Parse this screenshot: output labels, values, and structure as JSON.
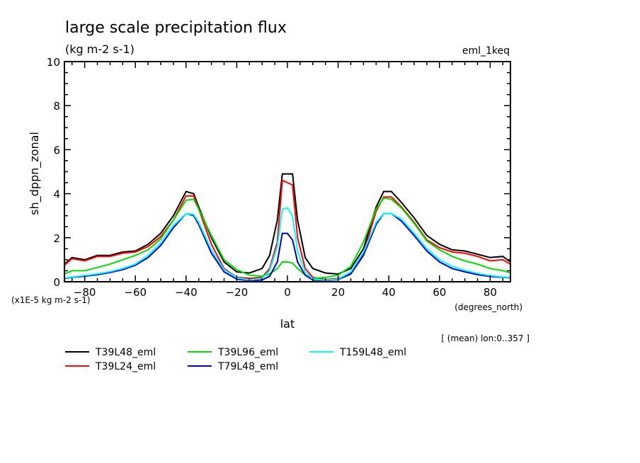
{
  "chart_data": {
    "type": "line",
    "title": "large scale precipitation flux",
    "subtitle": "(kg m-2 s-1)",
    "experiment_label": "eml_1keq",
    "xlabel": "lat",
    "xunits": "(degrees_north)",
    "ylabel": "sh_dppn_zonal",
    "yscale_note": "(x1E-5 kg m-2 s-1)",
    "footnote": "[ (mean) lon:0..357 ]",
    "xlim": [
      -88,
      88
    ],
    "ylim": [
      0,
      10
    ],
    "xticks": [
      -80,
      -60,
      -40,
      -20,
      0,
      20,
      40,
      60,
      80
    ],
    "xtick_labels": [
      "-80",
      "-60",
      "-40",
      "-20",
      "0",
      "20",
      "40",
      "60",
      "80"
    ],
    "yticks": [
      0,
      2,
      4,
      6,
      8,
      10
    ],
    "ytick_labels": [
      "0",
      "2",
      "4",
      "6",
      "8",
      "10"
    ],
    "grid": false,
    "legend_position": "bottom",
    "x": [
      -88,
      -85,
      -80,
      -75,
      -70,
      -65,
      -60,
      -55,
      -50,
      -45,
      -40,
      -37,
      -35,
      -30,
      -25,
      -20,
      -15,
      -10,
      -7,
      -4,
      -2,
      0,
      2,
      4,
      7,
      10,
      15,
      20,
      25,
      30,
      35,
      38,
      41,
      45,
      50,
      55,
      60,
      65,
      70,
      75,
      80,
      85,
      88
    ],
    "series": [
      {
        "name": "T39L48_eml",
        "color": "#000000",
        "values": [
          0.8,
          1.1,
          1.0,
          1.2,
          1.2,
          1.35,
          1.4,
          1.7,
          2.2,
          3.0,
          4.1,
          4.0,
          3.4,
          2.0,
          0.9,
          0.45,
          0.4,
          0.6,
          1.2,
          2.8,
          4.9,
          4.9,
          4.9,
          2.8,
          1.1,
          0.6,
          0.4,
          0.35,
          0.6,
          1.5,
          3.4,
          4.1,
          4.1,
          3.6,
          2.9,
          2.1,
          1.7,
          1.45,
          1.4,
          1.25,
          1.1,
          1.15,
          0.9
        ]
      },
      {
        "name": "T39L24_eml",
        "color": "#ff0000",
        "values": [
          0.75,
          1.05,
          0.95,
          1.15,
          1.15,
          1.3,
          1.35,
          1.6,
          2.05,
          2.8,
          3.9,
          3.9,
          3.3,
          1.7,
          0.6,
          0.2,
          0.15,
          0.2,
          0.6,
          1.8,
          4.6,
          4.5,
          4.4,
          2.0,
          0.6,
          0.2,
          0.1,
          0.15,
          0.4,
          1.3,
          3.2,
          3.85,
          3.85,
          3.4,
          2.7,
          1.9,
          1.55,
          1.35,
          1.3,
          1.15,
          0.95,
          1.0,
          0.8
        ]
      },
      {
        "name": "T39L96_eml",
        "color": "#00dd00",
        "values": [
          0.35,
          0.5,
          0.5,
          0.65,
          0.8,
          1.0,
          1.2,
          1.45,
          1.95,
          2.8,
          3.7,
          3.75,
          3.3,
          2.1,
          1.0,
          0.55,
          0.3,
          0.25,
          0.35,
          0.6,
          0.9,
          0.9,
          0.85,
          0.6,
          0.3,
          0.15,
          0.2,
          0.3,
          0.7,
          1.8,
          3.3,
          3.8,
          3.75,
          3.35,
          2.65,
          1.85,
          1.45,
          1.15,
          0.95,
          0.8,
          0.6,
          0.5,
          0.4
        ]
      },
      {
        "name": "T79L48_eml",
        "color": "#0000cc",
        "values": [
          0.15,
          0.2,
          0.25,
          0.32,
          0.42,
          0.55,
          0.75,
          1.1,
          1.65,
          2.45,
          3.1,
          3.0,
          2.6,
          1.3,
          0.45,
          0.12,
          0.05,
          0.08,
          0.25,
          0.9,
          2.2,
          2.2,
          1.9,
          0.9,
          0.3,
          0.08,
          0.05,
          0.1,
          0.35,
          1.2,
          2.6,
          3.1,
          3.1,
          2.75,
          2.1,
          1.4,
          0.9,
          0.6,
          0.45,
          0.32,
          0.24,
          0.2,
          0.18
        ]
      },
      {
        "name": "T159L48_eml",
        "color": "#00ffff",
        "values": [
          0.17,
          0.22,
          0.28,
          0.36,
          0.46,
          0.6,
          0.8,
          1.2,
          1.75,
          2.55,
          3.1,
          3.05,
          2.7,
          1.45,
          0.55,
          0.18,
          0.08,
          0.15,
          0.5,
          1.6,
          3.3,
          3.35,
          3.0,
          1.4,
          0.45,
          0.12,
          0.07,
          0.12,
          0.45,
          1.35,
          2.7,
          3.1,
          3.1,
          2.85,
          2.2,
          1.5,
          1.0,
          0.7,
          0.52,
          0.38,
          0.28,
          0.22,
          0.2
        ]
      }
    ]
  }
}
